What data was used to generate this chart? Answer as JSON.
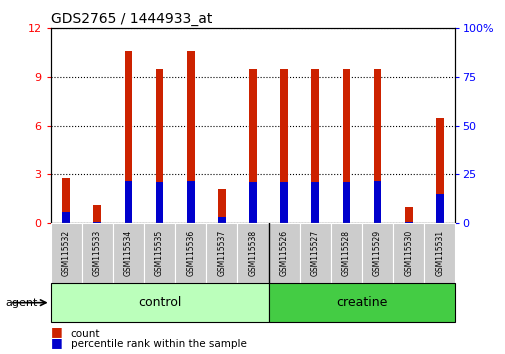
{
  "title": "GDS2765 / 1444933_at",
  "samples": [
    "GSM115532",
    "GSM115533",
    "GSM115534",
    "GSM115535",
    "GSM115536",
    "GSM115537",
    "GSM115538",
    "GSM115526",
    "GSM115527",
    "GSM115528",
    "GSM115529",
    "GSM115530",
    "GSM115531"
  ],
  "count_values": [
    2.8,
    1.1,
    10.6,
    9.5,
    10.6,
    2.1,
    9.5,
    9.5,
    9.5,
    9.5,
    9.5,
    1.0,
    6.5
  ],
  "percentile_values": [
    0.7,
    0.05,
    2.6,
    2.5,
    2.6,
    0.4,
    2.5,
    2.5,
    2.5,
    2.5,
    2.6,
    0.05,
    1.8
  ],
  "groups": [
    {
      "label": "control",
      "start": 0,
      "end": 6,
      "color_light": "#ccffcc",
      "color_dark": "#66dd66"
    },
    {
      "label": "creatine",
      "start": 7,
      "end": 12,
      "color_light": "#55dd55",
      "color_dark": "#33bb33"
    }
  ],
  "ylim_left": [
    0,
    12
  ],
  "ylim_right": [
    0,
    100
  ],
  "yticks_left": [
    0,
    3,
    6,
    9,
    12
  ],
  "yticks_right": [
    0,
    25,
    50,
    75,
    100
  ],
  "bar_color_count": "#cc2200",
  "bar_color_percentile": "#0000cc",
  "bar_width": 0.25,
  "tick_label_bg": "#cccccc",
  "grid_style": ":",
  "grid_color": "#000000",
  "agent_label": "agent",
  "control_color": "#bbffbb",
  "creatine_color": "#44cc44",
  "legend_count_color": "#cc2200",
  "legend_pct_color": "#0000cc"
}
